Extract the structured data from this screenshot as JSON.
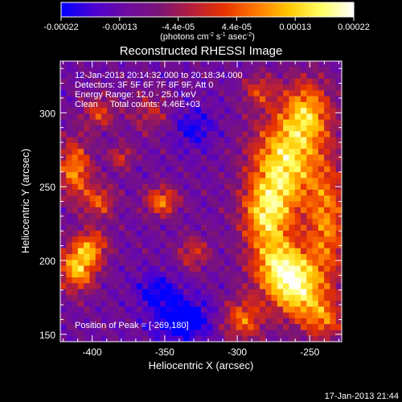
{
  "colorbar": {
    "ticks": [
      "-0.00022",
      "-0.00013",
      "-4.4e-05",
      "4.4e-05",
      "0.00013",
      "0.00022"
    ],
    "units_main": "(photons cm",
    "units_sup1": "-2",
    "units_mid": " s",
    "units_sup2": "-1",
    "units_end": " asec",
    "units_sup3": "-2",
    "units_close": ")",
    "colors": [
      "#0000ff",
      "#4b00d2",
      "#6e0aa0",
      "#7a1478",
      "#b41e3c",
      "#e63200",
      "#ff7800",
      "#ffc800",
      "#ffff64",
      "#ffffff"
    ],
    "vmin": -0.00022,
    "vmax": 0.00022
  },
  "chart_data": {
    "type": "heatmap",
    "title": "Reconstructed RHESSI Image",
    "xlabel": "Heliocentric X (arcsec)",
    "ylabel": "Heliocentric Y (arcsec)",
    "xlim": [
      -422,
      -228
    ],
    "ylim": [
      145,
      335
    ],
    "xticks": [
      -400,
      -350,
      -300,
      -250
    ],
    "yticks": [
      150,
      200,
      250,
      300
    ],
    "annotations": {
      "time": "12-Jan-2013 20:14:32.000 to 20:18:34.000",
      "detectors": "Detectors: 3F 5F 6F 7F 8F 9F, Att 0",
      "energy": "Energy Range: 12.0 - 25.0 keV",
      "clean": "Clean     Total counts: 4.46E+03",
      "peak": "Position of Peak = [-269,180]"
    },
    "peak": [
      -269,
      180
    ],
    "blobs": [
      {
        "x": -268,
        "y": 265,
        "sx": 16,
        "sy": 22,
        "v": 1.0
      },
      {
        "x": -252,
        "y": 300,
        "sx": 12,
        "sy": 16,
        "v": 0.8
      },
      {
        "x": -280,
        "y": 230,
        "sx": 12,
        "sy": 16,
        "v": 0.85
      },
      {
        "x": -270,
        "y": 195,
        "sx": 14,
        "sy": 14,
        "v": 0.95
      },
      {
        "x": -258,
        "y": 178,
        "sx": 12,
        "sy": 14,
        "v": 0.8
      },
      {
        "x": -296,
        "y": 160,
        "sx": 10,
        "sy": 10,
        "v": 0.65
      },
      {
        "x": -238,
        "y": 225,
        "sx": 10,
        "sy": 30,
        "v": 0.7
      },
      {
        "x": -240,
        "y": 160,
        "sx": 10,
        "sy": 10,
        "v": 0.55
      },
      {
        "x": -410,
        "y": 195,
        "sx": 9,
        "sy": 11,
        "v": 0.9
      },
      {
        "x": -400,
        "y": 210,
        "sx": 8,
        "sy": 8,
        "v": 0.6
      },
      {
        "x": -412,
        "y": 262,
        "sx": 8,
        "sy": 14,
        "v": 0.75
      },
      {
        "x": -395,
        "y": 240,
        "sx": 8,
        "sy": 8,
        "v": 0.55
      },
      {
        "x": -352,
        "y": 240,
        "sx": 8,
        "sy": 7,
        "v": 0.7
      },
      {
        "x": -330,
        "y": 205,
        "sx": 8,
        "sy": 8,
        "v": 0.45
      },
      {
        "x": -380,
        "y": 270,
        "sx": 6,
        "sy": 6,
        "v": 0.45
      },
      {
        "x": -360,
        "y": 300,
        "sx": 10,
        "sy": 10,
        "v": 0.35
      },
      {
        "x": -395,
        "y": 300,
        "sx": 8,
        "sy": 8,
        "v": 0.5
      },
      {
        "x": -285,
        "y": 315,
        "sx": 8,
        "sy": 8,
        "v": 0.45
      },
      {
        "x": -338,
        "y": 160,
        "sx": 14,
        "sy": 10,
        "v": -0.6
      },
      {
        "x": -355,
        "y": 180,
        "sx": 10,
        "sy": 8,
        "v": -0.4
      },
      {
        "x": -330,
        "y": 290,
        "sx": 10,
        "sy": 10,
        "v": -0.35
      }
    ]
  },
  "footer": {
    "timestamp": "17-Jan-2013 21:44"
  }
}
